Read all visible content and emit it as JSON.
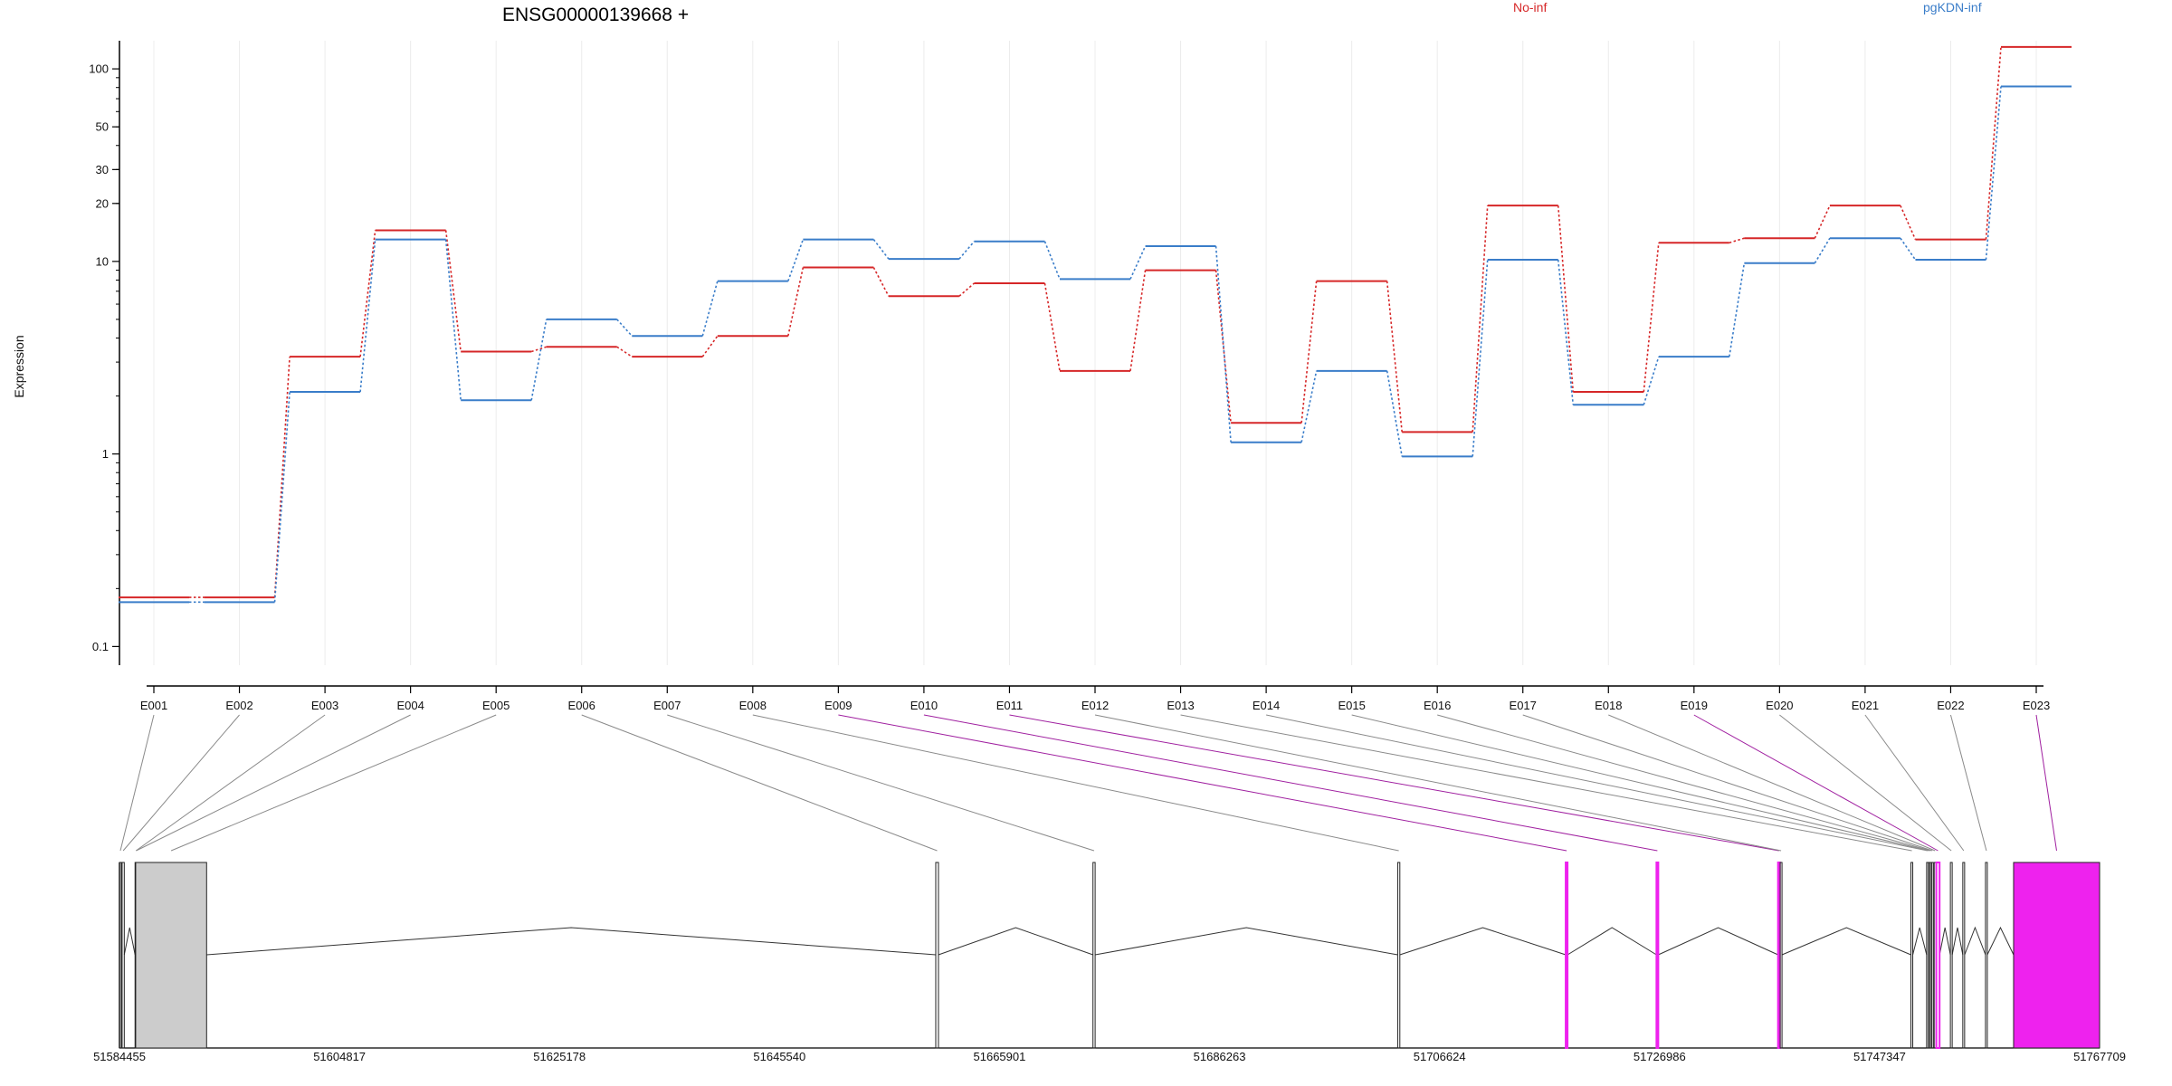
{
  "chart_data": {
    "type": "line",
    "title": "ENSG00000139668 +",
    "ylabel": "Expression",
    "yscale": "log",
    "ylim": [
      0.08,
      140
    ],
    "yticks": [
      0.1,
      1,
      10,
      20,
      30,
      50,
      100
    ],
    "ytick_labels": [
      "0.1",
      "1",
      "10",
      "20",
      "30",
      "50",
      "100"
    ],
    "grid": "vertical",
    "legend_placement": "top-right",
    "colors": {
      "No-inf": "#d62728",
      "pgKDN-inf": "#3a7dc9",
      "gene_model": "#cccccc",
      "highlight": "#ee22ee"
    },
    "categories": [
      "E001",
      "E002",
      "E003",
      "E004",
      "E005",
      "E006",
      "E007",
      "E008",
      "E009",
      "E010",
      "E011",
      "E012",
      "E013",
      "E014",
      "E015",
      "E016",
      "E017",
      "E018",
      "E019",
      "E020",
      "E021",
      "E022",
      "E023"
    ],
    "series": [
      {
        "name": "No-inf",
        "color": "#d62728",
        "values": [
          0.18,
          0.18,
          3.2,
          14.5,
          3.4,
          3.6,
          3.2,
          4.1,
          9.3,
          6.6,
          7.7,
          2.7,
          9.0,
          1.45,
          7.9,
          1.3,
          19.5,
          2.1,
          12.5,
          13.2,
          19.5,
          13.0,
          130
        ]
      },
      {
        "name": "pgKDN-inf",
        "color": "#3a7dc9",
        "values": [
          0.17,
          0.17,
          2.1,
          13.0,
          1.9,
          5.0,
          4.1,
          7.9,
          13.0,
          10.3,
          12.7,
          8.1,
          12.0,
          1.15,
          2.7,
          0.97,
          10.2,
          1.8,
          3.2,
          9.8,
          13.2,
          10.2,
          81
        ]
      }
    ],
    "gene_model": {
      "coordinate_labels": [
        "51584455",
        "51604817",
        "51625178",
        "51645540",
        "51665901",
        "51686263",
        "51706624",
        "51726986",
        "51747347",
        "51767709"
      ],
      "coord_range": [
        51584455,
        51767709
      ],
      "exons": [
        {
          "id": "E001",
          "start": 51584455,
          "end": 51584560,
          "highlight": false
        },
        {
          "id": "E002",
          "start": 51584700,
          "end": 51584900,
          "highlight": false
        },
        {
          "id": "E003",
          "start": 51585900,
          "end": 51585910,
          "highlight": false
        },
        {
          "id": "E004",
          "start": 51585920,
          "end": 51585940,
          "highlight": false
        },
        {
          "id": "E005",
          "start": 51585955,
          "end": 51592520,
          "highlight": false
        },
        {
          "id": "E006",
          "start": 51660000,
          "end": 51660250,
          "highlight": false
        },
        {
          "id": "E007",
          "start": 51674550,
          "end": 51674750,
          "highlight": false
        },
        {
          "id": "E008",
          "start": 51702750,
          "end": 51702950,
          "highlight": false
        },
        {
          "id": "E009",
          "start": 51718300,
          "end": 51718450,
          "highlight": true
        },
        {
          "id": "E010",
          "start": 51726700,
          "end": 51726850,
          "highlight": true
        },
        {
          "id": "E011",
          "start": 51737950,
          "end": 51738100,
          "highlight": true
        },
        {
          "id": "E012",
          "start": 51738150,
          "end": 51738300,
          "highlight": false
        },
        {
          "id": "E013",
          "start": 51750250,
          "end": 51750400,
          "highlight": false
        },
        {
          "id": "E014",
          "start": 51751700,
          "end": 51751800,
          "highlight": false
        },
        {
          "id": "E015",
          "start": 51751850,
          "end": 51751950,
          "highlight": false
        },
        {
          "id": "E016",
          "start": 51752000,
          "end": 51752100,
          "highlight": false
        },
        {
          "id": "E017",
          "start": 51752150,
          "end": 51752250,
          "highlight": false
        },
        {
          "id": "E018",
          "start": 51752400,
          "end": 51752500,
          "highlight": false
        },
        {
          "id": "E019",
          "start": 51752600,
          "end": 51752900,
          "highlight": true
        },
        {
          "id": "E020",
          "start": 51753900,
          "end": 51754050,
          "highlight": false
        },
        {
          "id": "E021",
          "start": 51755050,
          "end": 51755200,
          "highlight": false
        },
        {
          "id": "E022",
          "start": 51757150,
          "end": 51757300,
          "highlight": false
        },
        {
          "id": "E023",
          "start": 51759750,
          "end": 51767709,
          "highlight": true
        }
      ]
    }
  }
}
